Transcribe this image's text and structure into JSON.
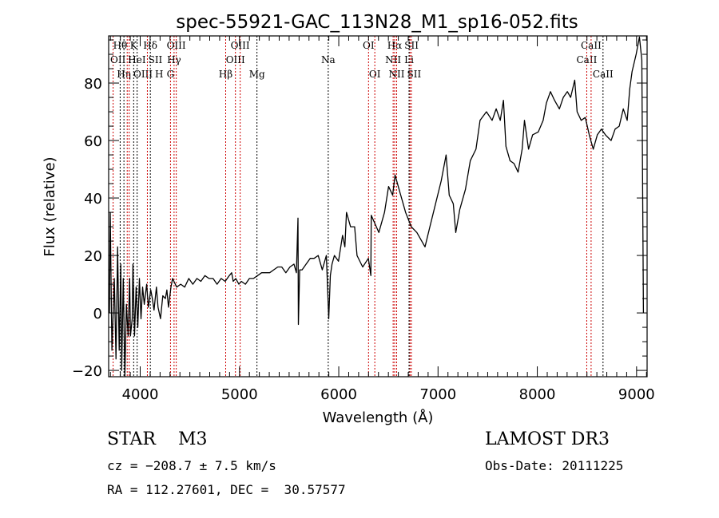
{
  "chart_data": {
    "type": "line",
    "title": "spec-55921-GAC_113N28_M1_sp16-052.fits",
    "xlabel": "Wavelength (Å)",
    "ylabel": "Flux (relative)",
    "xlim": [
      3682,
      9106
    ],
    "ylim": [
      -22.2,
      96.4
    ],
    "xticks": [
      4000,
      5000,
      6000,
      7000,
      8000,
      9000
    ],
    "yticks": [
      -20,
      0,
      20,
      40,
      60,
      80
    ],
    "grid": false,
    "series": [
      {
        "name": "spectrum",
        "color": "#000000",
        "points": [
          [
            3690,
            0
          ],
          [
            3698,
            35
          ],
          [
            3715,
            -13
          ],
          [
            3739,
            12
          ],
          [
            3756,
            -16
          ],
          [
            3772,
            23
          ],
          [
            3788,
            -13
          ],
          [
            3804,
            17
          ],
          [
            3813,
            -20
          ],
          [
            3829,
            12
          ],
          [
            3845,
            -22
          ],
          [
            3861,
            3
          ],
          [
            3878,
            -8
          ],
          [
            3894,
            12
          ],
          [
            3902,
            -8
          ],
          [
            3919,
            -2
          ],
          [
            3927,
            17
          ],
          [
            3943,
            -8
          ],
          [
            3959,
            9
          ],
          [
            3976,
            -5
          ],
          [
            3992,
            12
          ],
          [
            4008,
            -2
          ],
          [
            4024,
            9
          ],
          [
            4041,
            3
          ],
          [
            4065,
            10
          ],
          [
            4082,
            2
          ],
          [
            4106,
            8
          ],
          [
            4122,
            5
          ],
          [
            4139,
            1
          ],
          [
            4163,
            9
          ],
          [
            4179,
            2
          ],
          [
            4204,
            -2
          ],
          [
            4228,
            6
          ],
          [
            4253,
            5
          ],
          [
            4269,
            8
          ],
          [
            4285,
            2
          ],
          [
            4310,
            9
          ],
          [
            4326,
            12
          ],
          [
            4367,
            9
          ],
          [
            4408,
            10
          ],
          [
            4448,
            9
          ],
          [
            4489,
            12
          ],
          [
            4530,
            10
          ],
          [
            4571,
            12
          ],
          [
            4611,
            11
          ],
          [
            4652,
            13
          ],
          [
            4693,
            12
          ],
          [
            4734,
            12
          ],
          [
            4774,
            10
          ],
          [
            4815,
            12
          ],
          [
            4856,
            11
          ],
          [
            4897,
            13
          ],
          [
            4921,
            14
          ],
          [
            4937,
            11
          ],
          [
            4962,
            12
          ],
          [
            4994,
            10
          ],
          [
            5019,
            11
          ],
          [
            5060,
            10
          ],
          [
            5100,
            12
          ],
          [
            5141,
            12
          ],
          [
            5182,
            13
          ],
          [
            5223,
            14
          ],
          [
            5263,
            14
          ],
          [
            5304,
            14
          ],
          [
            5345,
            15
          ],
          [
            5386,
            16
          ],
          [
            5426,
            16
          ],
          [
            5467,
            14
          ],
          [
            5508,
            16
          ],
          [
            5549,
            17
          ],
          [
            5573,
            14
          ],
          [
            5589,
            33
          ],
          [
            5593,
            -4
          ],
          [
            5606,
            15
          ],
          [
            5630,
            15
          ],
          [
            5671,
            17
          ],
          [
            5712,
            19
          ],
          [
            5752,
            19
          ],
          [
            5793,
            20
          ],
          [
            5834,
            15
          ],
          [
            5875,
            20
          ],
          [
            5899,
            -2
          ],
          [
            5915,
            13
          ],
          [
            5932,
            17
          ],
          [
            5956,
            20
          ],
          [
            5997,
            18
          ],
          [
            6038,
            27
          ],
          [
            6062,
            23
          ],
          [
            6078,
            35
          ],
          [
            6119,
            30
          ],
          [
            6160,
            30
          ],
          [
            6184,
            20
          ],
          [
            6241,
            16
          ],
          [
            6298,
            19
          ],
          [
            6323,
            13
          ],
          [
            6327,
            34
          ],
          [
            6404,
            28
          ],
          [
            6461,
            35
          ],
          [
            6502,
            44
          ],
          [
            6543,
            41
          ],
          [
            6567,
            48
          ],
          [
            6624,
            41
          ],
          [
            6673,
            35
          ],
          [
            6730,
            30
          ],
          [
            6787,
            28
          ],
          [
            6869,
            23
          ],
          [
            6918,
            30
          ],
          [
            6975,
            38
          ],
          [
            7032,
            46
          ],
          [
            7081,
            55
          ],
          [
            7113,
            41
          ],
          [
            7154,
            38
          ],
          [
            7179,
            28
          ],
          [
            7219,
            36
          ],
          [
            7276,
            43
          ],
          [
            7325,
            53
          ],
          [
            7382,
            57
          ],
          [
            7423,
            67
          ],
          [
            7488,
            70
          ],
          [
            7545,
            67
          ],
          [
            7586,
            71
          ],
          [
            7627,
            67
          ],
          [
            7659,
            74
          ],
          [
            7684,
            58
          ],
          [
            7725,
            53
          ],
          [
            7765,
            52
          ],
          [
            7806,
            49
          ],
          [
            7847,
            57
          ],
          [
            7871,
            67
          ],
          [
            7912,
            57
          ],
          [
            7953,
            62
          ],
          [
            8010,
            63
          ],
          [
            8059,
            67
          ],
          [
            8091,
            73
          ],
          [
            8132,
            77
          ],
          [
            8173,
            74
          ],
          [
            8222,
            71
          ],
          [
            8262,
            75
          ],
          [
            8303,
            77
          ],
          [
            8336,
            75
          ],
          [
            8377,
            81
          ],
          [
            8401,
            70
          ],
          [
            8442,
            67
          ],
          [
            8483,
            68
          ],
          [
            8523,
            62
          ],
          [
            8564,
            57
          ],
          [
            8605,
            62
          ],
          [
            8646,
            64
          ],
          [
            8686,
            62
          ],
          [
            8743,
            60
          ],
          [
            8784,
            64
          ],
          [
            8825,
            65
          ],
          [
            8866,
            71
          ],
          [
            8906,
            67
          ],
          [
            8931,
            78
          ],
          [
            8955,
            84
          ],
          [
            8996,
            90
          ],
          [
            9029,
            96
          ],
          [
            9053,
            88
          ],
          [
            9069,
            0
          ]
        ]
      }
    ],
    "lines": [
      {
        "label": "OII",
        "wl": 3727,
        "row": 2,
        "color": "#cc0000"
      },
      {
        "label": "Hθ",
        "wl": 3798,
        "row": 1,
        "color": "#000000"
      },
      {
        "label": "Hη",
        "wl": 3836,
        "row": 3,
        "color": "#000000"
      },
      {
        "label": "OIII",
        "wl": 3869,
        "row": 3,
        "color": "#cc0000"
      },
      {
        "label": "HeI",
        "wl": 3889,
        "row": 2,
        "color": "#cc0000"
      },
      {
        "label": "K",
        "wl": 3934,
        "row": 1,
        "color": "#000000"
      },
      {
        "label": "H",
        "wl": 3969,
        "row": 3,
        "color": "#000000"
      },
      {
        "label": "SII",
        "wl": 4072,
        "row": 2,
        "color": "#cc0000"
      },
      {
        "label": "Hδ",
        "wl": 4102,
        "row": 1,
        "color": "#000000"
      },
      {
        "label": "G",
        "wl": 4305,
        "row": 3,
        "color": "#cc0000"
      },
      {
        "label": "Hγ",
        "wl": 4341,
        "row": 2,
        "color": "#cc0000"
      },
      {
        "label": "OIII",
        "wl": 4363,
        "row": 1,
        "color": "#cc0000"
      },
      {
        "label": "Hβ",
        "wl": 4861,
        "row": 3,
        "color": "#cc0000"
      },
      {
        "label": "OIII",
        "wl": 4959,
        "row": 2,
        "color": "#cc0000"
      },
      {
        "label": "OIII",
        "wl": 5007,
        "row": 1,
        "color": "#cc0000"
      },
      {
        "label": "Mg",
        "wl": 5176,
        "row": 3,
        "color": "#000000"
      },
      {
        "label": "Na",
        "wl": 5894,
        "row": 2,
        "color": "#000000"
      },
      {
        "label": "OI",
        "wl": 6300,
        "row": 1,
        "color": "#cc0000"
      },
      {
        "label": "OI",
        "wl": 6363,
        "row": 3,
        "color": "#cc0000"
      },
      {
        "label": "NII",
        "wl": 6548,
        "row": 2,
        "color": "#cc0000"
      },
      {
        "label": "Hα",
        "wl": 6563,
        "row": 1,
        "color": "#cc0000"
      },
      {
        "label": "NII",
        "wl": 6583,
        "row": 3,
        "color": "#cc0000"
      },
      {
        "label": "Li",
        "wl": 6708,
        "row": 2,
        "color": "#000000"
      },
      {
        "label": "SII",
        "wl": 6717,
        "row": 1,
        "color": "#cc0000"
      },
      {
        "label": "SII",
        "wl": 6731,
        "row": 3,
        "color": "#cc0000"
      },
      {
        "label": "CaII",
        "wl": 8498,
        "row": 2,
        "color": "#cc0000"
      },
      {
        "label": "CaII",
        "wl": 8542,
        "row": 1,
        "color": "#cc0000"
      },
      {
        "label": "CaII",
        "wl": 8662,
        "row": 3,
        "color": "#000000"
      }
    ]
  },
  "info": {
    "class": "STAR    M3",
    "cz": "cz = −208.7 ± 7.5 km/s",
    "radec": "RA = 112.27601, DEC =  30.57577",
    "survey": "LAMOST DR3",
    "obsdate": "Obs-Date: 20111225"
  }
}
